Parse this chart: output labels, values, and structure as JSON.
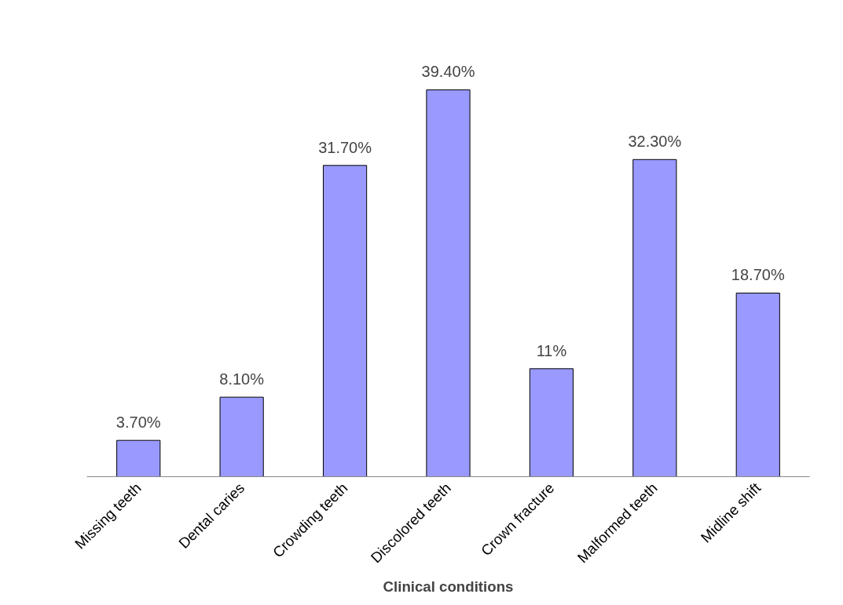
{
  "chart_data": {
    "type": "bar",
    "xlabel": "Clinical conditions",
    "categories": [
      "Missing teeth",
      "Dental caries",
      "Crowding teeth",
      "Discolored teeth",
      "Crown fracture",
      "Malformed teeth",
      "Midline shift"
    ],
    "values": [
      3.7,
      8.1,
      31.7,
      39.4,
      11,
      32.3,
      18.7
    ],
    "value_labels": [
      "3.70%",
      "8.10%",
      "31.70%",
      "39.40%",
      "11%",
      "32.30%",
      "18.70%"
    ],
    "color": "#9999ff",
    "tick_labels": "x",
    "grid": false
  }
}
